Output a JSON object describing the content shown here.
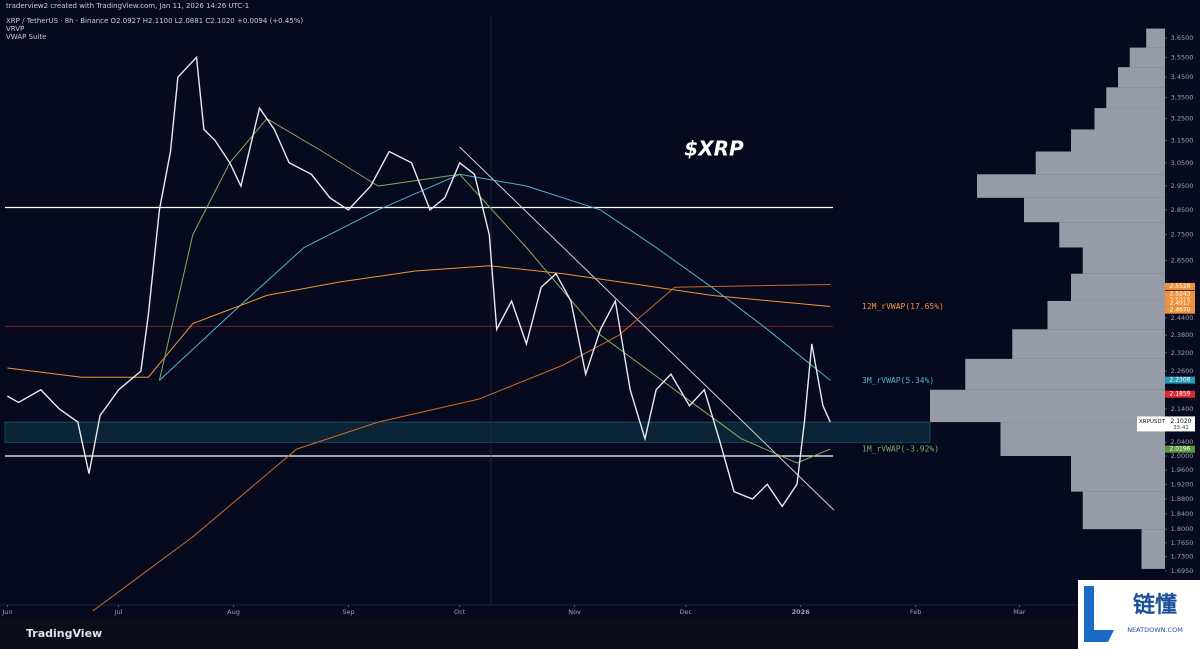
{
  "header": {
    "attribution": "traderview2 created with TradingView.com, Jan 11, 2026 14:26 UTC-1",
    "symbol_line": "XRP / TetherUS · 8h · Binance  O2.0927  H2.1100  L2.0881  C2.1020  +0.0094 (+0.45%)",
    "indicators": [
      "VRVP",
      "VWAP Suite"
    ]
  },
  "chart_data": {
    "type": "line",
    "title": "$XRP",
    "log_scale": true,
    "grid": false,
    "xlim": [
      -2,
      288
    ],
    "ylim": [
      1.584,
      3.773
    ],
    "xticks": [
      {
        "value": 0,
        "label": "Jun"
      },
      {
        "value": 30,
        "label": "Jul"
      },
      {
        "value": 61,
        "label": "Aug"
      },
      {
        "value": 92,
        "label": "Sep"
      },
      {
        "value": 122,
        "label": "Oct"
      },
      {
        "value": 153,
        "label": "Nov"
      },
      {
        "value": 183,
        "label": "Dec"
      },
      {
        "value": 214,
        "label": "2026"
      },
      {
        "value": 245,
        "label": "Feb"
      },
      {
        "value": 273,
        "label": "Mar"
      }
    ],
    "yticks": [
      {
        "value": 3.65,
        "label": "3.6500"
      },
      {
        "value": 3.55,
        "label": "3.5500"
      },
      {
        "value": 3.45,
        "label": "3.4500"
      },
      {
        "value": 3.35,
        "label": "3.3500"
      },
      {
        "value": 3.25,
        "label": "3.2500"
      },
      {
        "value": 3.15,
        "label": "3.1500"
      },
      {
        "value": 3.05,
        "label": "3.0500"
      },
      {
        "value": 2.95,
        "label": "2.9500"
      },
      {
        "value": 2.85,
        "label": "2.8500"
      },
      {
        "value": 2.75,
        "label": "2.7500"
      },
      {
        "value": 2.65,
        "label": "2.6500"
      },
      {
        "value": 2.44,
        "label": "2.4400"
      },
      {
        "value": 2.38,
        "label": "2.3800"
      },
      {
        "value": 2.32,
        "label": "2.3200"
      },
      {
        "value": 2.26,
        "label": "2.2600"
      },
      {
        "value": 2.14,
        "label": "2.1400"
      },
      {
        "value": 2.04,
        "label": "2.0400"
      },
      {
        "value": 2,
        "label": "2.0000"
      },
      {
        "value": 1.96,
        "label": "1.9600"
      },
      {
        "value": 1.92,
        "label": "1.9200"
      },
      {
        "value": 1.88,
        "label": "1.8800"
      },
      {
        "value": 1.84,
        "label": "1.8400"
      },
      {
        "value": 1.8,
        "label": "1.8000"
      },
      {
        "value": 1.765,
        "label": "1.7650"
      },
      {
        "value": 1.73,
        "label": "1.7300"
      },
      {
        "value": 1.695,
        "label": "1.6950"
      }
    ],
    "series": [
      {
        "name": "XRPUSDT",
        "color": "#e8eaf0",
        "x": [
          0,
          3,
          9,
          14,
          19,
          22,
          25,
          30,
          36,
          38,
          41,
          44,
          46,
          51,
          53,
          56,
          60,
          63,
          68,
          72,
          76,
          82,
          87,
          92,
          98,
          103,
          109,
          114,
          118,
          122,
          126,
          130,
          132,
          136,
          140,
          144,
          148,
          152,
          156,
          160,
          164,
          168,
          172,
          175,
          179,
          184,
          188,
          192,
          196,
          201,
          205,
          209,
          213,
          215,
          217,
          220,
          222
        ],
        "values": [
          2.18,
          2.16,
          2.2,
          2.14,
          2.1,
          1.95,
          2.12,
          2.2,
          2.26,
          2.45,
          2.85,
          3.1,
          3.45,
          3.55,
          3.2,
          3.15,
          3.05,
          2.95,
          3.3,
          3.2,
          3.05,
          3.0,
          2.9,
          2.85,
          2.95,
          3.1,
          3.05,
          2.85,
          2.9,
          3.05,
          3.0,
          2.75,
          2.4,
          2.5,
          2.35,
          2.55,
          2.6,
          2.5,
          2.25,
          2.4,
          2.5,
          2.2,
          2.05,
          2.2,
          2.25,
          2.15,
          2.2,
          2.05,
          1.9,
          1.88,
          1.92,
          1.86,
          1.92,
          2.1,
          2.35,
          2.15,
          2.1
        ]
      },
      {
        "name": "3M_rVWAP(5.34%)",
        "color": "#4fb3c8",
        "x": [
          41,
          60,
          80,
          100,
          122,
          140,
          160,
          175,
          190,
          205,
          222
        ],
        "values": [
          2.23,
          2.45,
          2.7,
          2.85,
          3.0,
          2.95,
          2.85,
          2.7,
          2.55,
          2.4,
          2.23
        ]
      },
      {
        "name": "12M_rVWAP(17.65%)",
        "color": "#f0923a",
        "x": [
          0,
          20,
          38,
          50,
          70,
          90,
          110,
          130,
          150,
          170,
          190,
          222
        ],
        "values": [
          2.27,
          2.24,
          2.24,
          2.42,
          2.52,
          2.57,
          2.61,
          2.63,
          2.6,
          2.56,
          2.52,
          2.48
        ]
      },
      {
        "name": "1M_rVWAP(-3.92%)",
        "color": "#7fae5c",
        "x": [
          41,
          50,
          60,
          70,
          85,
          100,
          122,
          140,
          160,
          180,
          198,
          213,
          222
        ],
        "values": [
          2.23,
          2.75,
          3.05,
          3.25,
          3.1,
          2.95,
          3.0,
          2.7,
          2.38,
          2.2,
          2.05,
          1.98,
          2.02
        ]
      },
      {
        "name": "VWAP",
        "color": "#c86a28",
        "x": [
          23,
          50,
          78,
          100,
          127,
          150,
          165,
          180,
          222
        ],
        "values": [
          1.6,
          1.78,
          2.02,
          2.1,
          2.17,
          2.28,
          2.38,
          2.55,
          2.56
        ]
      }
    ],
    "levels": [
      2.86,
      2.0,
      2.41
    ],
    "level_colors": [
      "#ffffff",
      "#ffffff",
      "#6a1a24"
    ],
    "zone": [
      2.04,
      2.1
    ],
    "trendline": {
      "x": [
        122,
        223
      ],
      "values": [
        3.12,
        1.85
      ]
    },
    "price_labels": [
      {
        "value": 2.5528,
        "label": "2.5528",
        "color": "#f0923a"
      },
      {
        "value": 2.5243,
        "label": "2.5243",
        "color": "#f0923a"
      },
      {
        "value": 2.5019,
        "label": "2.5019",
        "color": "#f0923a"
      },
      {
        "value": 2.4926,
        "label": "2.4926",
        "color": "#f0923a"
      },
      {
        "value": 2.4917,
        "label": "2.4917",
        "color": "#f0923a"
      },
      {
        "value": 2.467,
        "label": "2.4670",
        "color": "#f0923a"
      },
      {
        "value": 2.2308,
        "label": "2.2308",
        "color": "#2a9bb4"
      },
      {
        "value": 2.1859,
        "label": "2.1859",
        "color": "#e0282e"
      },
      {
        "value": 2.0196,
        "label": "2.0196",
        "color": "#5a9a3c"
      }
    ],
    "last_price": {
      "symbol": "XRPUSDT",
      "value": 2.102,
      "label": "2.1020",
      "countdown": "33:41"
    },
    "volume_profile": {
      "bins": [
        1.7,
        1.8,
        1.9,
        2.0,
        2.1,
        2.2,
        2.3,
        2.4,
        2.5,
        2.6,
        2.7,
        2.8,
        2.9,
        3.0,
        3.1,
        3.2,
        3.3,
        3.4,
        3.5,
        3.6,
        3.7
      ],
      "values": [
        10,
        35,
        40,
        70,
        100,
        85,
        65,
        50,
        40,
        35,
        45,
        60,
        80,
        55,
        40,
        30,
        25,
        20,
        15,
        8
      ],
      "color": "#c8ccd6"
    }
  },
  "footer": {
    "brand": "TradingView",
    "watermark": "链懂",
    "watermark_site": "NEATDOWN.COM"
  }
}
